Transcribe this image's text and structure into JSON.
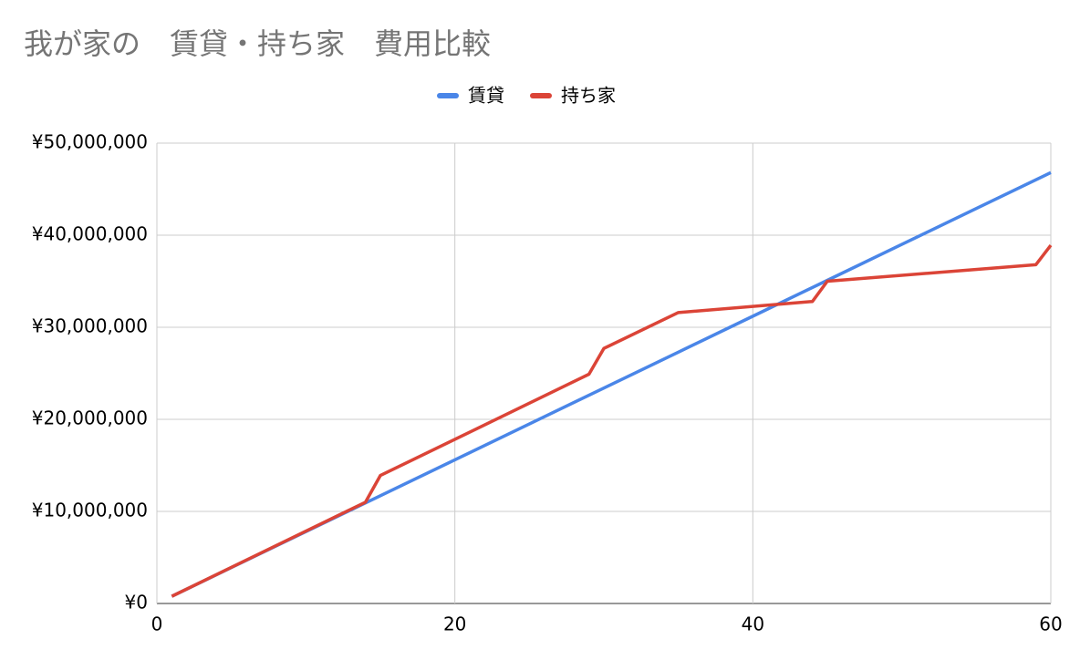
{
  "chart_data": {
    "type": "line",
    "title": "我が家の　賃貸・持ち家　費用比較",
    "legend": "top",
    "grid": true,
    "series": [
      {
        "name": "賃貸",
        "color": "#4a86e8",
        "x": [
          1,
          5,
          10,
          15,
          20,
          25,
          30,
          35,
          40,
          45,
          50,
          55,
          60
        ],
        "values": [
          780000,
          3900000,
          7800000,
          11700000,
          15600000,
          19500000,
          23400000,
          27300000,
          31200000,
          35100000,
          39000000,
          42900000,
          46800000
        ]
      },
      {
        "name": "持ち家",
        "color": "#db4437",
        "x": [
          1,
          14,
          15,
          29,
          30,
          35,
          44,
          45,
          59,
          60
        ],
        "values": [
          780000,
          11000000,
          13900000,
          24900000,
          27700000,
          31600000,
          32800000,
          35000000,
          36800000,
          38900000
        ]
      }
    ],
    "xlim": [
      0,
      60
    ],
    "xticks": [
      0,
      20,
      40,
      60
    ],
    "ylim": [
      0,
      50000000
    ],
    "yticks": [
      {
        "value": 0,
        "label": "¥0"
      },
      {
        "value": 10000000,
        "label": "¥10,000,000"
      },
      {
        "value": 20000000,
        "label": "¥20,000,000"
      },
      {
        "value": 30000000,
        "label": "¥30,000,000"
      },
      {
        "value": 40000000,
        "label": "¥40,000,000"
      },
      {
        "value": 50000000,
        "label": "¥50,000,000"
      }
    ]
  }
}
